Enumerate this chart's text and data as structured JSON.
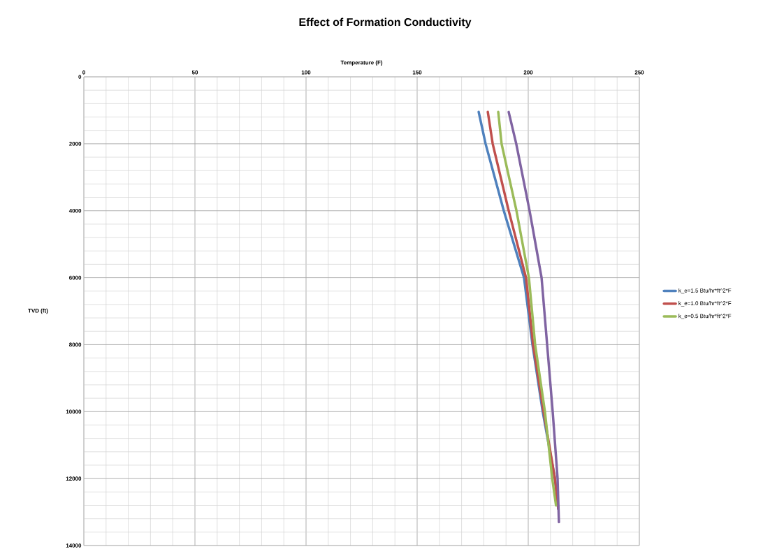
{
  "chart_data": {
    "type": "line",
    "title": "Effect of Formation Conductivity",
    "xlabel": "Temperature (F)",
    "ylabel": "TVD (ft)",
    "xlim": [
      0,
      250
    ],
    "xticks": [
      0,
      50,
      100,
      150,
      200,
      250
    ],
    "ylim": [
      14000,
      0
    ],
    "yticks": [
      0,
      2000,
      4000,
      6000,
      8000,
      10000,
      12000,
      14000
    ],
    "grid": true,
    "legend": "right",
    "marker": "none",
    "line_style": "solid",
    "series": [
      {
        "name": "k_e=1.5 Btu/hr*ft^2*F",
        "color": "#4f81bd",
        "x": [
          177.7,
          180.8,
          189.0,
          198.1,
          201.9,
          206.5,
          212.0,
          213.5
        ],
        "values": [
          1050,
          2000,
          4000,
          6000,
          8000,
          10000,
          12000,
          12900
        ]
      },
      {
        "name": "k_e=1.0 Btu/hr*ft^2*F",
        "color": "#c0504d",
        "x": [
          181.8,
          184.0,
          191.2,
          199.0,
          202.2,
          206.9,
          212.0,
          213.5
        ],
        "values": [
          1050,
          2000,
          4000,
          6000,
          8000,
          10000,
          12000,
          12900
        ]
      },
      {
        "name": "k_e=0.5 Btu/hr*ft^2*F",
        "color": "#9bbb59",
        "x": [
          186.5,
          188.0,
          194.7,
          200.3,
          203.1,
          207.5,
          210.8,
          212.5
        ],
        "values": [
          1050,
          2000,
          4000,
          6000,
          8000,
          10000,
          12000,
          12800
        ]
      },
      {
        "color": "#8064a2",
        "x": [
          191.2,
          194.6,
          200.6,
          206.0,
          208.5,
          211.0,
          213.2,
          213.8
        ],
        "values": [
          1050,
          2000,
          4000,
          6000,
          8000,
          10000,
          12000,
          13300
        ]
      }
    ]
  }
}
